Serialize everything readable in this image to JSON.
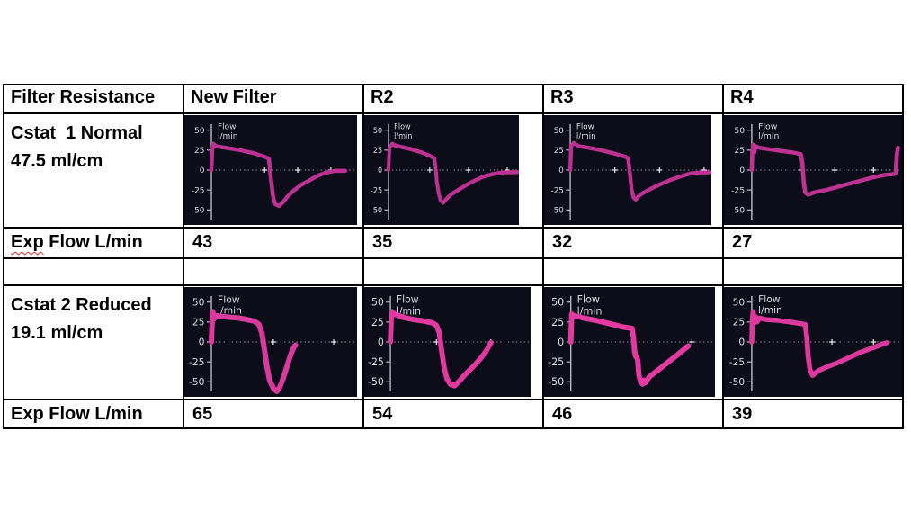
{
  "page": {
    "background": "#ffffff"
  },
  "table": {
    "headers": [
      "Filter Resistance",
      "New Filter",
      "R2",
      "R3",
      "R4"
    ],
    "cstat1": {
      "line1": "Cstat  1 Normal",
      "line2": "47.5 ml/cm"
    },
    "exp1": {
      "word": "Exp",
      "rest": " Flow L/min",
      "values": [
        "43",
        "35",
        "32",
        "27"
      ]
    },
    "cstat2": {
      "line1": "Cstat 2 Reduced",
      "line2": "19.1 ml/cm"
    },
    "exp2": {
      "label": "Exp Flow L/min",
      "values": [
        "65",
        "54",
        "46",
        "39"
      ]
    }
  },
  "chart_data": {
    "type": "line",
    "title": "Flow l/min",
    "unit_label": [
      "Flow",
      "l/min"
    ],
    "xlabel": "",
    "ylabel": "Flow l/min",
    "yticks": [
      50,
      25,
      0,
      -25,
      -50
    ],
    "ylim": [
      -65,
      55
    ],
    "grid": false,
    "legend": "none",
    "background": "#0d0d19",
    "axis_color": "#b9bac6",
    "text_color": "#d8d8e0",
    "baseline_color": "#8f8f9c",
    "tick_color": "#e8e8ee",
    "charts": [
      {
        "name": "cstat1-new-filter",
        "exp_flow": 43,
        "color": "#bc3191",
        "stroke": 4.5,
        "scale": 1,
        "width_pct": 97,
        "zero_ticks": [
          0.37,
          0.6,
          0.83
        ],
        "points": [
          [
            0,
            0
          ],
          [
            0.006,
            26
          ],
          [
            0.015,
            33
          ],
          [
            0.03,
            30
          ],
          [
            0.1,
            28
          ],
          [
            0.2,
            25
          ],
          [
            0.3,
            21
          ],
          [
            0.38,
            16
          ],
          [
            0.4,
            14
          ],
          [
            0.41,
            -5
          ],
          [
            0.42,
            -20
          ],
          [
            0.43,
            -35
          ],
          [
            0.445,
            -43
          ],
          [
            0.47,
            -45
          ],
          [
            0.5,
            -40
          ],
          [
            0.53,
            -33
          ],
          [
            0.57,
            -26
          ],
          [
            0.62,
            -19
          ],
          [
            0.68,
            -13
          ],
          [
            0.74,
            -7
          ],
          [
            0.8,
            -3
          ],
          [
            0.86,
            -1
          ],
          [
            0.93,
            -1
          ]
        ]
      },
      {
        "name": "cstat1-r2",
        "exp_flow": 35,
        "color": "#bc3191",
        "stroke": 4.5,
        "scale": 1,
        "width_pct": 87,
        "zero_ticks": [
          0.32,
          0.62,
          0.92
        ],
        "points": [
          [
            0,
            0
          ],
          [
            0.008,
            28
          ],
          [
            0.03,
            33
          ],
          [
            0.05,
            31
          ],
          [
            0.1,
            29
          ],
          [
            0.18,
            26
          ],
          [
            0.26,
            22
          ],
          [
            0.32,
            18
          ],
          [
            0.355,
            15
          ],
          [
            0.365,
            5
          ],
          [
            0.375,
            -15
          ],
          [
            0.39,
            -30
          ],
          [
            0.405,
            -38
          ],
          [
            0.425,
            -41
          ],
          [
            0.45,
            -36
          ],
          [
            0.49,
            -30
          ],
          [
            0.54,
            -25
          ],
          [
            0.6,
            -19
          ],
          [
            0.67,
            -13
          ],
          [
            0.74,
            -8
          ],
          [
            0.81,
            -5
          ],
          [
            0.88,
            -3
          ],
          [
            1,
            -2.5
          ]
        ]
      },
      {
        "name": "cstat1-r3",
        "exp_flow": 32,
        "color": "#bc3191",
        "stroke": 4.5,
        "scale": 1,
        "width_pct": 94,
        "zero_ticks": [
          0.32,
          0.64,
          0.96
        ],
        "points": [
          [
            0,
            0
          ],
          [
            0.006,
            30
          ],
          [
            0.025,
            34
          ],
          [
            0.06,
            30
          ],
          [
            0.13,
            28
          ],
          [
            0.22,
            25
          ],
          [
            0.31,
            21
          ],
          [
            0.39,
            17
          ],
          [
            0.415,
            15
          ],
          [
            0.425,
            0
          ],
          [
            0.44,
            -25
          ],
          [
            0.455,
            -35
          ],
          [
            0.47,
            -37
          ],
          [
            0.5,
            -31
          ],
          [
            0.56,
            -25
          ],
          [
            0.63,
            -19
          ],
          [
            0.71,
            -13
          ],
          [
            0.79,
            -8
          ],
          [
            0.87,
            -4
          ],
          [
            0.94,
            -3
          ],
          [
            1,
            -3
          ]
        ]
      },
      {
        "name": "cstat1-r4",
        "exp_flow": 27,
        "color": "#bf3292",
        "stroke": 4.5,
        "scale": 1,
        "width_pct": 100,
        "zero_ticks": [
          0.34,
          0.56,
          0.82
        ],
        "points": [
          [
            0,
            0
          ],
          [
            0.004,
            24
          ],
          [
            0.01,
            32
          ],
          [
            0.016,
            22
          ],
          [
            0.026,
            30
          ],
          [
            0.05,
            28
          ],
          [
            0.12,
            26
          ],
          [
            0.2,
            24
          ],
          [
            0.28,
            22
          ],
          [
            0.33,
            20
          ],
          [
            0.34,
            10
          ],
          [
            0.35,
            -15
          ],
          [
            0.36,
            -28
          ],
          [
            0.38,
            -31
          ],
          [
            0.42,
            -28
          ],
          [
            0.5,
            -25
          ],
          [
            0.58,
            -21
          ],
          [
            0.66,
            -17
          ],
          [
            0.74,
            -13
          ],
          [
            0.82,
            -9
          ],
          [
            0.9,
            -6
          ],
          [
            0.96,
            -5
          ],
          [
            0.97,
            -4
          ],
          [
            0.978,
            20
          ],
          [
            0.985,
            28
          ]
        ]
      },
      {
        "name": "cstat2-new-filter",
        "exp_flow": 65,
        "color": "#d93a9c",
        "stroke": 6,
        "scale": 1.2,
        "width_pct": 97,
        "zero_ticks": [
          0.43,
          0.85
        ],
        "points": [
          [
            0,
            0
          ],
          [
            0.004,
            18
          ],
          [
            0.01,
            38
          ],
          [
            0.018,
            29
          ],
          [
            0.035,
            33
          ],
          [
            0.07,
            32
          ],
          [
            0.13,
            31
          ],
          [
            0.19,
            30
          ],
          [
            0.25,
            28
          ],
          [
            0.3,
            26
          ],
          [
            0.33,
            22
          ],
          [
            0.35,
            12
          ],
          [
            0.365,
            -5
          ],
          [
            0.385,
            -30
          ],
          [
            0.405,
            -48
          ],
          [
            0.43,
            -58
          ],
          [
            0.455,
            -62
          ],
          [
            0.475,
            -57
          ],
          [
            0.5,
            -45
          ],
          [
            0.53,
            -28
          ],
          [
            0.555,
            -14
          ],
          [
            0.575,
            -6
          ],
          [
            0.585,
            -4
          ]
        ]
      },
      {
        "name": "cstat2-r2",
        "exp_flow": 54,
        "color": "#e1399f",
        "stroke": 6,
        "scale": 1.25,
        "width_pct": 94,
        "zero_ticks": [
          0.33,
          0.72
        ],
        "points": [
          [
            0,
            0
          ],
          [
            0.006,
            30
          ],
          [
            0.012,
            38
          ],
          [
            0.03,
            35
          ],
          [
            0.09,
            31
          ],
          [
            0.17,
            28
          ],
          [
            0.25,
            26
          ],
          [
            0.3,
            24
          ],
          [
            0.33,
            21
          ],
          [
            0.35,
            12
          ],
          [
            0.365,
            -8
          ],
          [
            0.385,
            -32
          ],
          [
            0.405,
            -46
          ],
          [
            0.43,
            -53
          ],
          [
            0.46,
            -55
          ],
          [
            0.49,
            -50
          ],
          [
            0.53,
            -42
          ],
          [
            0.57,
            -35
          ],
          [
            0.61,
            -28
          ],
          [
            0.65,
            -20
          ],
          [
            0.685,
            -12
          ],
          [
            0.71,
            -4
          ],
          [
            0.72,
            -1
          ]
        ]
      },
      {
        "name": "cstat2-r3",
        "exp_flow": 46,
        "color": "#e23aa0",
        "stroke": 6,
        "scale": 1.25,
        "width_pct": 96,
        "zero_ticks": [
          0.44,
          0.85
        ],
        "points": [
          [
            0,
            0
          ],
          [
            0.006,
            35
          ],
          [
            0.02,
            33
          ],
          [
            0.09,
            30
          ],
          [
            0.18,
            27
          ],
          [
            0.27,
            23
          ],
          [
            0.36,
            19
          ],
          [
            0.43,
            17
          ],
          [
            0.44,
            5
          ],
          [
            0.448,
            -12
          ],
          [
            0.455,
            -18
          ],
          [
            0.465,
            -20
          ],
          [
            0.47,
            -23
          ],
          [
            0.478,
            -42
          ],
          [
            0.49,
            -50
          ],
          [
            0.505,
            -53
          ],
          [
            0.515,
            -48
          ],
          [
            0.525,
            -51
          ],
          [
            0.55,
            -44
          ],
          [
            0.6,
            -37
          ],
          [
            0.65,
            -30
          ],
          [
            0.7,
            -23
          ],
          [
            0.75,
            -16
          ],
          [
            0.79,
            -10
          ],
          [
            0.825,
            -5
          ]
        ]
      },
      {
        "name": "cstat2-r4",
        "exp_flow": 39,
        "color": "#dd389d",
        "stroke": 5.5,
        "scale": 1.15,
        "width_pct": 100,
        "zero_ticks": [
          0.54,
          0.82
        ],
        "points": [
          [
            0,
            0
          ],
          [
            0.003,
            26
          ],
          [
            0.009,
            38
          ],
          [
            0.015,
            24
          ],
          [
            0.024,
            32
          ],
          [
            0.035,
            25
          ],
          [
            0.05,
            30
          ],
          [
            0.1,
            28
          ],
          [
            0.18,
            27
          ],
          [
            0.26,
            25
          ],
          [
            0.33,
            23
          ],
          [
            0.36,
            22
          ],
          [
            0.37,
            8
          ],
          [
            0.38,
            -18
          ],
          [
            0.392,
            -35
          ],
          [
            0.41,
            -42
          ],
          [
            0.45,
            -36
          ],
          [
            0.51,
            -31
          ],
          [
            0.58,
            -26
          ],
          [
            0.65,
            -20
          ],
          [
            0.72,
            -14
          ],
          [
            0.79,
            -9
          ],
          [
            0.85,
            -5
          ],
          [
            0.89,
            -2
          ],
          [
            0.91,
            -1
          ]
        ]
      }
    ]
  }
}
